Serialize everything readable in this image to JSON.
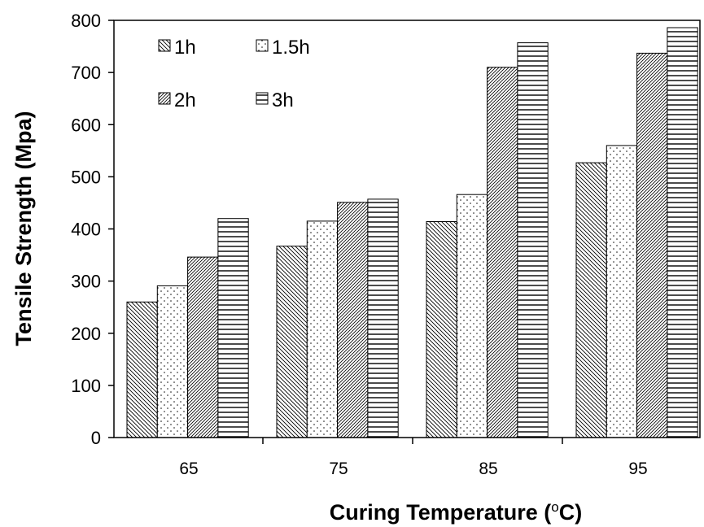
{
  "chart_data": {
    "type": "bar",
    "title": "",
    "xlabel": "Curing Temperature (",
    "xlabel_sup": "o",
    "xlabel_unit": "C)",
    "ylabel": "Tensile Strength (Mpa)",
    "categories": [
      "65",
      "75",
      "85",
      "95"
    ],
    "series": [
      {
        "name": "1h",
        "values": [
          260,
          367,
          414,
          527
        ]
      },
      {
        "name": "1.5h",
        "values": [
          291,
          415,
          466,
          560
        ]
      },
      {
        "name": "2h",
        "values": [
          346,
          451,
          710,
          737
        ]
      },
      {
        "name": "3h",
        "values": [
          420,
          457,
          757,
          786
        ]
      }
    ],
    "ylim": [
      0,
      800
    ],
    "yticks": [
      "0",
      "100",
      "200",
      "300",
      "400",
      "500",
      "600",
      "700",
      "800"
    ],
    "grid": false,
    "legend_position": "top-left",
    "colors": {
      "bar_fill": "#ffffff",
      "stroke": "#000000"
    }
  }
}
